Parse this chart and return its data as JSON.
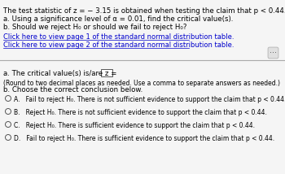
{
  "bg_color": "#f5f5f5",
  "text_color": "#000000",
  "link_color": "#0000cc",
  "header_lines": [
    "The test statistic of z = − 3.15 is obtained when testing the claim that p < 0.44.",
    "a. Using a significance level of α = 0.01, find the critical value(s).",
    "b. Should we reject H₀ or should we fail to reject H₀?"
  ],
  "link1": "Click here to view page 1 of the standard normal distribution table.",
  "link2": "Click here to view page 2 of the standard normal distribution table.",
  "part_a_label": "a. The critical value(s) is/are z =",
  "part_a_note": "(Round to two decimal places as needed. Use a comma to separate answers as needed.)",
  "part_b_label": "b. Choose the correct conclusion below.",
  "options": [
    "A.   Fail to reject H₀. There is not sufficient evidence to support the claim that p < 0.44.",
    "B.   Reject H₀. There is not sufficient evidence to support the claim that p < 0.44.",
    "C.   Reject H₀. There is sufficient evidence to support the claim that p < 0.44.",
    "D.   Fail to reject H₀. There is sufficient evidence to support the claim that p < 0.44."
  ],
  "fs_main": 6.2,
  "fs_small": 5.5,
  "fs_link": 6.0
}
